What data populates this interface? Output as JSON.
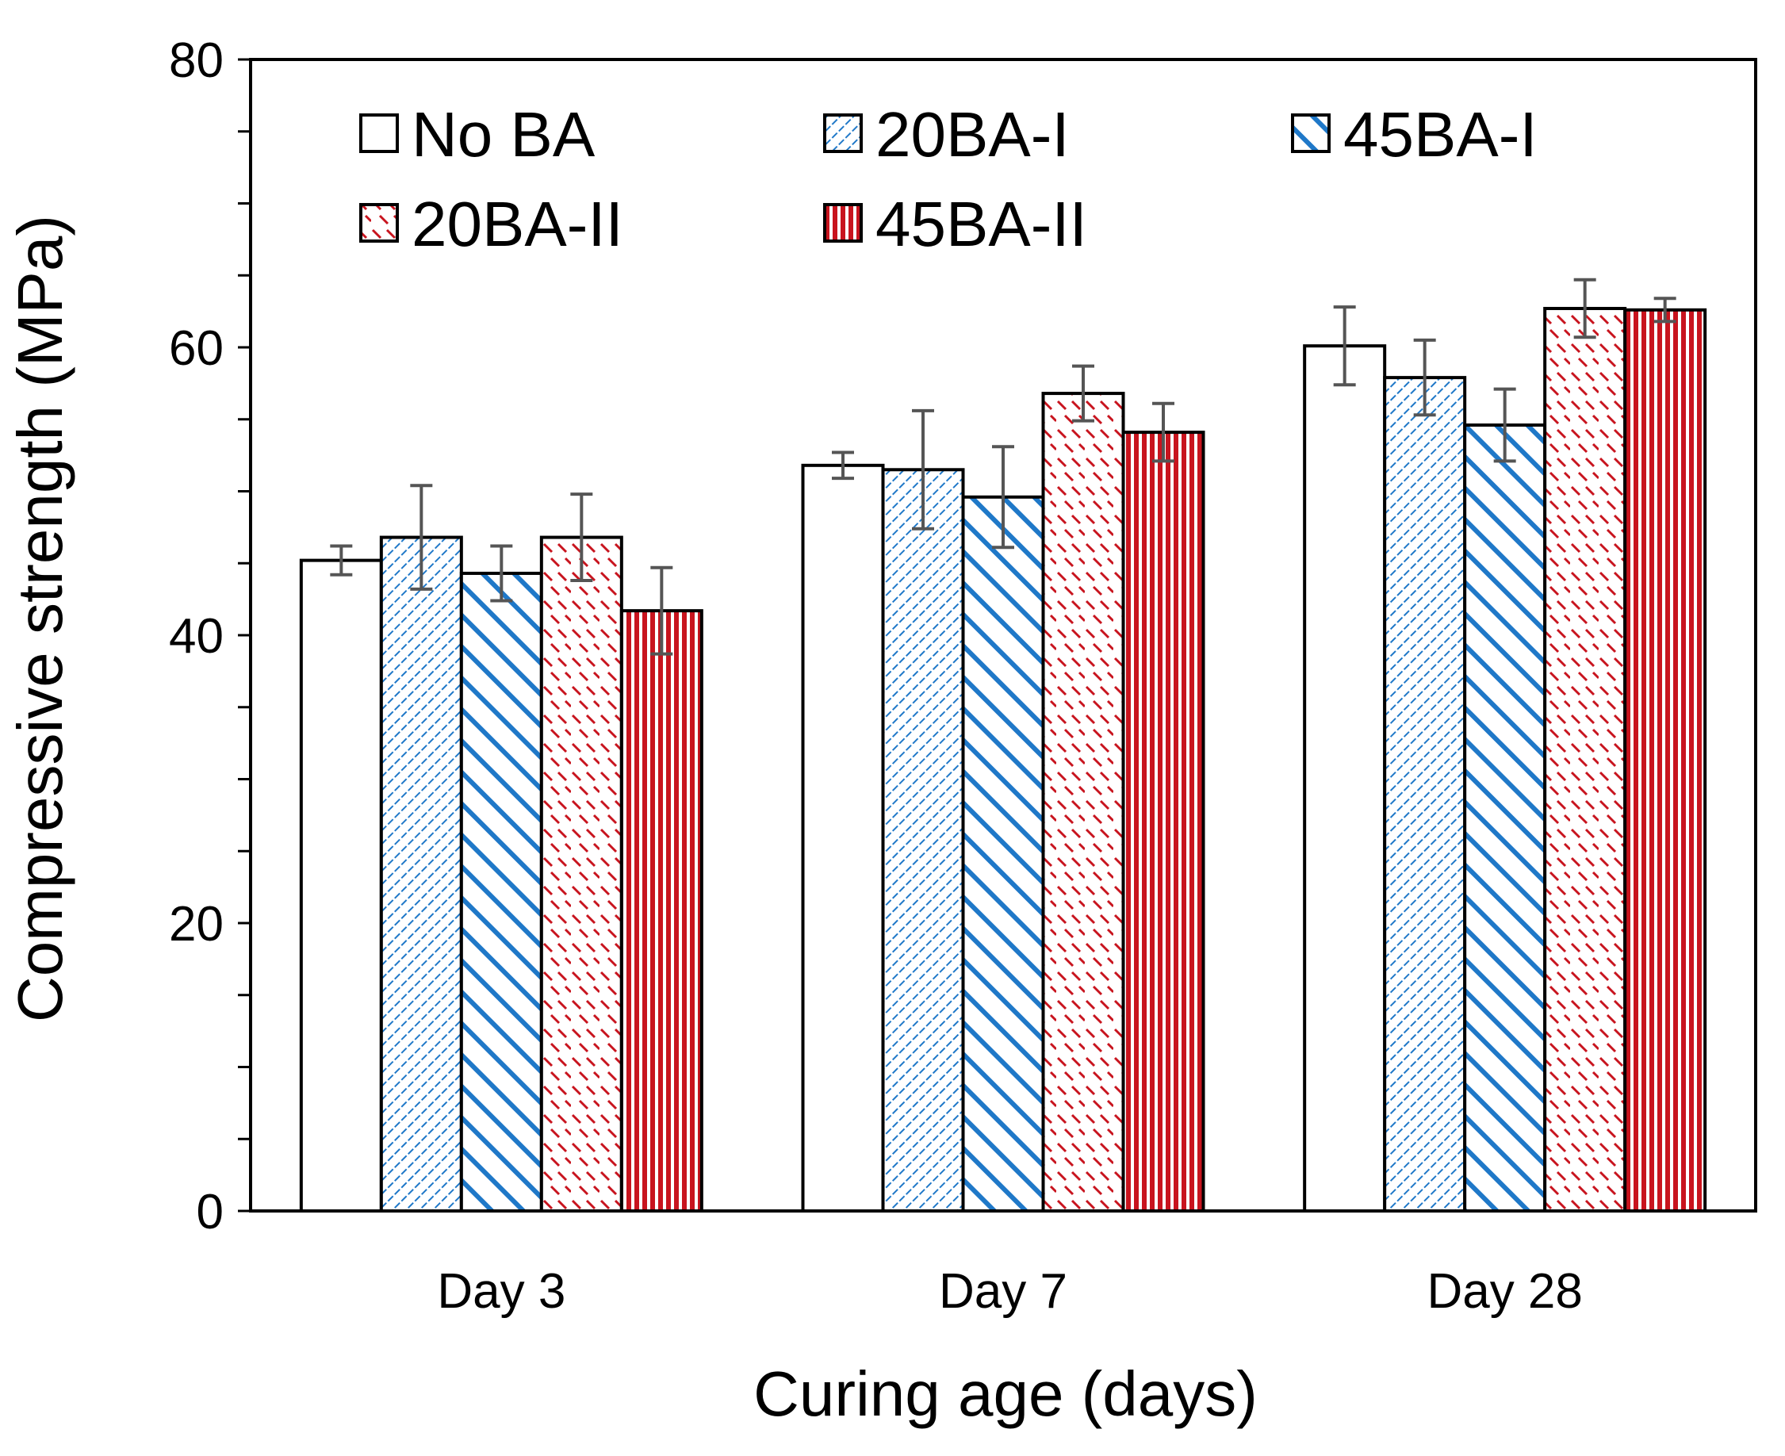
{
  "chart_data": {
    "type": "bar",
    "title": "",
    "xlabel": "Curing age (days)",
    "ylabel": "Compressive strength (MPa)",
    "ylim": [
      0,
      80
    ],
    "ytick_labels": [
      "0",
      "20",
      "40",
      "60",
      "80"
    ],
    "ytick_values": [
      0,
      20,
      40,
      60,
      80
    ],
    "minor_tick_step": 5,
    "grid": false,
    "legend_position": "top",
    "categories": [
      "Day 3",
      "Day 7",
      "Day 28"
    ],
    "series": [
      {
        "name": "No BA",
        "values": [
          45.2,
          51.8,
          60.1
        ],
        "errors": [
          1.0,
          0.9,
          2.7
        ],
        "pattern": "none",
        "color": "#ffffff"
      },
      {
        "name": "20BA-I",
        "values": [
          46.8,
          51.5,
          57.9
        ],
        "errors": [
          3.6,
          4.1,
          2.6
        ],
        "pattern": "fine-diag",
        "color": "#1f78c8"
      },
      {
        "name": "45BA-I",
        "values": [
          44.3,
          49.6,
          54.6
        ],
        "errors": [
          1.9,
          3.5,
          2.5
        ],
        "pattern": "wide-diag",
        "color": "#1f78c8"
      },
      {
        "name": "20BA-II",
        "values": [
          46.8,
          56.8,
          62.7
        ],
        "errors": [
          3.0,
          1.9,
          2.0
        ],
        "pattern": "dashed-diag",
        "color": "#c8141e"
      },
      {
        "name": "45BA-II",
        "values": [
          41.7,
          54.1,
          62.6
        ],
        "errors": [
          3.0,
          2.0,
          0.8
        ],
        "pattern": "vertical",
        "color": "#c8141e"
      }
    ]
  }
}
